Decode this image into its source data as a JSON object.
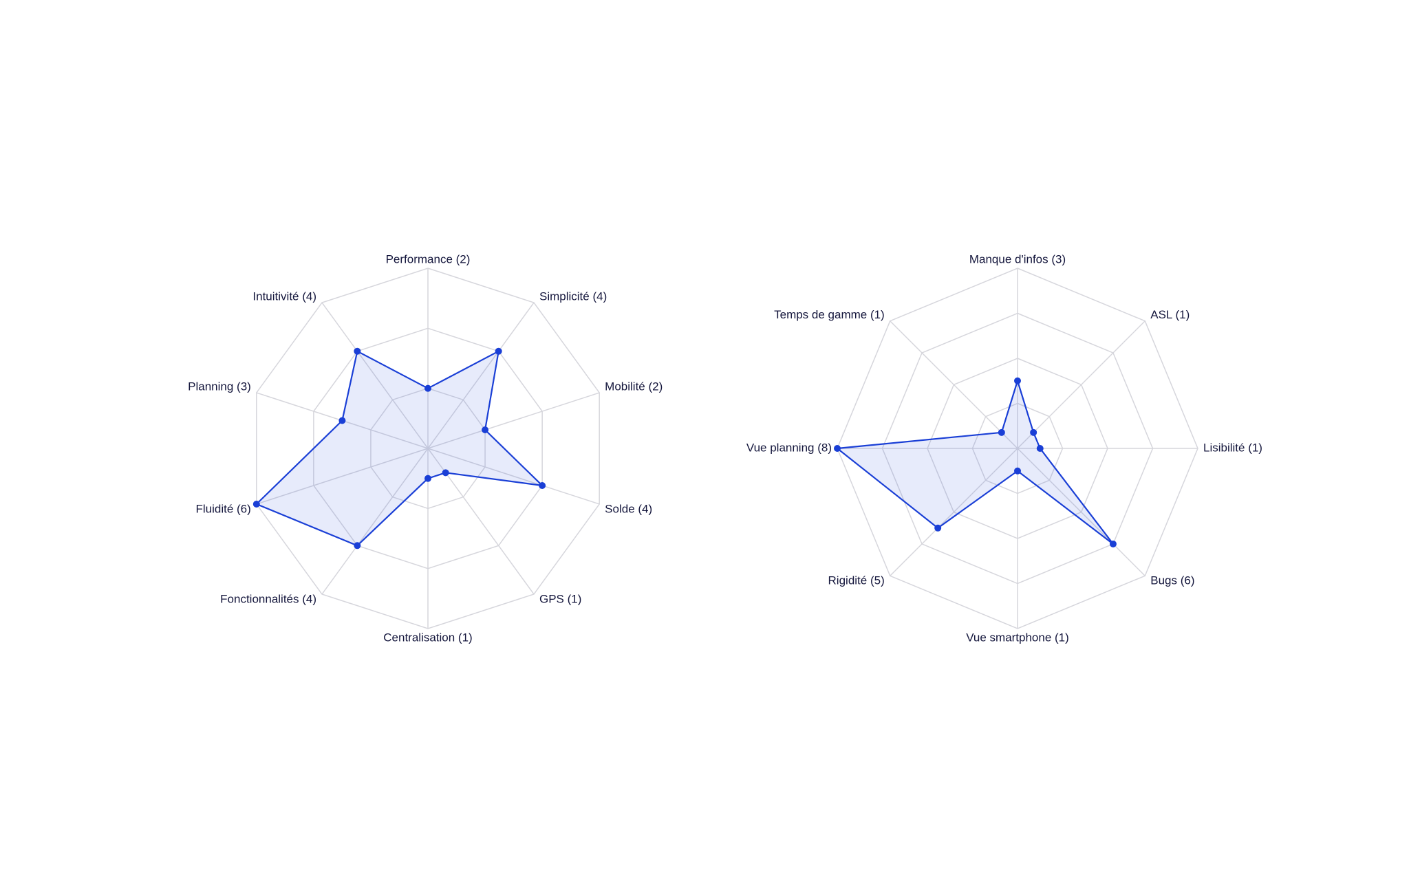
{
  "chart_data": [
    {
      "type": "radar",
      "categories": [
        "Performance (2)",
        "Simplicité (4)",
        "Mobilité (2)",
        "Solde (4)",
        "GPS (1)",
        "Centralisation (1)",
        "Fonctionnalités (4)",
        "Fluidité (6)",
        "Planning (3)",
        "Intuitivité (4)"
      ],
      "values": [
        2,
        4,
        2,
        4,
        1,
        1,
        4,
        6,
        3,
        4
      ],
      "rlim": [
        0,
        6
      ],
      "rticks": [
        2,
        4,
        6
      ],
      "grid": true,
      "color": "#1a3fd6"
    },
    {
      "type": "radar",
      "categories": [
        "Manque d'infos (3)",
        "ASL (1)",
        "Lisibilité (1)",
        "Bugs (6)",
        "Vue smartphone (1)",
        "Rigidité (5)",
        "Vue planning (8)",
        "Temps de gamme (1)"
      ],
      "values": [
        3,
        1,
        1,
        6,
        1,
        5,
        8,
        1
      ],
      "rlim": [
        0,
        8
      ],
      "rticks": [
        2,
        4,
        6,
        8
      ],
      "grid": true,
      "color": "#1a3fd6"
    }
  ]
}
